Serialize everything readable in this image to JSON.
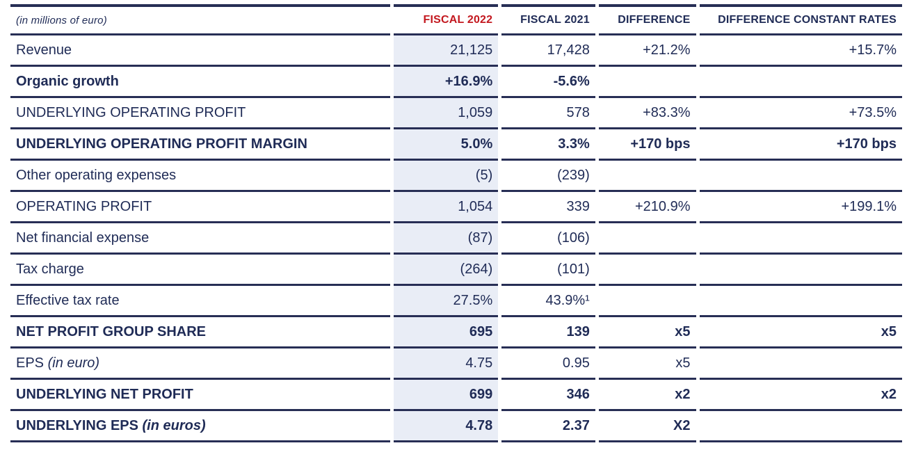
{
  "colors": {
    "navy_text": "#1f2b56",
    "red_accent": "#c3181f",
    "rule_border": "#272e55",
    "highlight_column_bg": "#e9edf6"
  },
  "table": {
    "unit_label": "(in millions of euro)",
    "headers": {
      "fiscal2022": "FISCAL 2022",
      "fiscal2021": "FISCAL 2021",
      "difference": "DIFFERENCE",
      "difference_constant_rates": "DIFFERENCE CONSTANT RATES"
    },
    "rows": [
      {
        "label": "Revenue",
        "label_suffix": "",
        "fiscal2022": "21,125",
        "fiscal2021": "17,428",
        "difference": "+21.2%",
        "difference_constant_rates": "+15.7%"
      },
      {
        "label": "Organic growth",
        "label_suffix": "",
        "fiscal2022": "+16.9%",
        "fiscal2021": "-5.6%",
        "difference": "",
        "difference_constant_rates": ""
      },
      {
        "label": "UNDERLYING OPERATING PROFIT",
        "label_suffix": "",
        "fiscal2022": "1,059",
        "fiscal2021": "578",
        "difference": "+83.3%",
        "difference_constant_rates": "+73.5%"
      },
      {
        "label": "UNDERLYING OPERATING PROFIT MARGIN",
        "label_suffix": "",
        "fiscal2022": "5.0%",
        "fiscal2021": "3.3%",
        "difference": "+170 bps",
        "difference_constant_rates": "+170 bps"
      },
      {
        "label": "Other operating expenses",
        "label_suffix": "",
        "fiscal2022": "(5)",
        "fiscal2021": "(239)",
        "difference": "",
        "difference_constant_rates": ""
      },
      {
        "label": "OPERATING PROFIT",
        "label_suffix": "",
        "fiscal2022": "1,054",
        "fiscal2021": "339",
        "difference": "+210.9%",
        "difference_constant_rates": "+199.1%"
      },
      {
        "label": "Net financial expense",
        "label_suffix": "",
        "fiscal2022": "(87)",
        "fiscal2021": "(106)",
        "difference": "",
        "difference_constant_rates": ""
      },
      {
        "label": "Tax charge",
        "label_suffix": "",
        "fiscal2022": "(264)",
        "fiscal2021": "(101)",
        "difference": "",
        "difference_constant_rates": ""
      },
      {
        "label": "Effective tax rate",
        "label_suffix": "",
        "fiscal2022": "27.5%",
        "fiscal2021": "43.9%¹",
        "difference": "",
        "difference_constant_rates": ""
      },
      {
        "label": "NET PROFIT GROUP SHARE",
        "label_suffix": "",
        "fiscal2022": "695",
        "fiscal2021": "139",
        "difference": "x5",
        "difference_constant_rates": "x5"
      },
      {
        "label": "EPS",
        "label_suffix": " (in euro)",
        "fiscal2022": "4.75",
        "fiscal2021": "0.95",
        "difference": "x5",
        "difference_constant_rates": ""
      },
      {
        "label": "UNDERLYING NET PROFIT",
        "label_suffix": "",
        "fiscal2022": "699",
        "fiscal2021": "346",
        "difference": "x2",
        "difference_constant_rates": "x2"
      },
      {
        "label": "UNDERLYING EPS",
        "label_suffix": " (in euros)",
        "fiscal2022": "4.78",
        "fiscal2021": "2.37",
        "difference": "X2",
        "difference_constant_rates": ""
      }
    ]
  }
}
